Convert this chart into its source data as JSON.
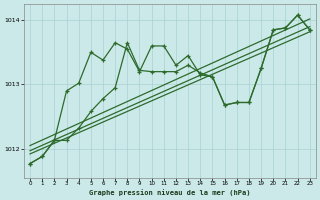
{
  "bg_color": "#cce9e9",
  "grid_color": "#aad0d0",
  "line_color": "#2d6b2d",
  "title": "Graphe pression niveau de la mer (hPa)",
  "ylim": [
    1011.55,
    1014.25
  ],
  "xlim": [
    -0.5,
    23.5
  ],
  "yticks": [
    1012,
    1013,
    1014
  ],
  "xticks": [
    0,
    1,
    2,
    3,
    4,
    5,
    6,
    7,
    8,
    9,
    10,
    11,
    12,
    13,
    14,
    15,
    16,
    17,
    18,
    19,
    20,
    21,
    22,
    23
  ],
  "zigzag1_x": [
    0,
    1,
    2,
    3,
    4,
    5,
    6,
    7,
    8,
    9,
    10,
    11,
    12,
    13,
    14,
    15,
    16,
    17,
    18,
    19,
    20,
    21,
    22,
    23
  ],
  "zigzag1_y": [
    1011.77,
    1011.88,
    1012.13,
    1012.9,
    1013.02,
    1013.5,
    1013.38,
    1013.65,
    1013.55,
    1013.2,
    1013.6,
    1013.6,
    1013.3,
    1013.45,
    1013.15,
    1013.12,
    1012.68,
    1012.72,
    1012.72,
    1013.25,
    1013.85,
    1013.88,
    1014.08,
    1013.85
  ],
  "zigzag2_x": [
    0,
    1,
    2,
    3,
    4,
    5,
    6,
    7,
    8,
    9,
    10,
    11,
    12,
    13,
    14,
    15,
    16,
    17,
    18,
    19,
    20,
    21,
    22,
    23
  ],
  "zigzag2_y": [
    1011.77,
    1011.88,
    1012.13,
    1012.13,
    1012.32,
    1012.58,
    1012.78,
    1012.95,
    1013.65,
    1013.22,
    1013.2,
    1013.2,
    1013.2,
    1013.3,
    1013.18,
    1013.12,
    1012.68,
    1012.72,
    1012.72,
    1013.25,
    1013.85,
    1013.88,
    1014.08,
    1013.85
  ],
  "trend1_x": [
    0,
    23
  ],
  "trend1_y": [
    1011.92,
    1013.82
  ],
  "trend2_x": [
    0,
    23
  ],
  "trend2_y": [
    1011.97,
    1013.9
  ],
  "trend3_x": [
    0,
    23
  ],
  "trend3_y": [
    1012.05,
    1014.02
  ]
}
